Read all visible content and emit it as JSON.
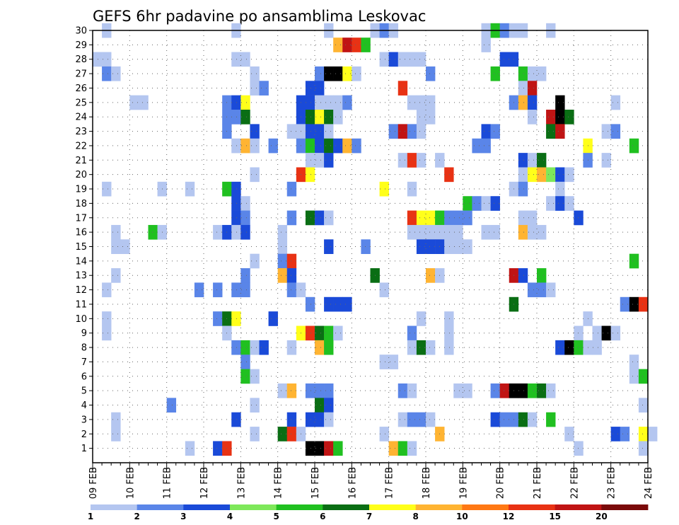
{
  "chart_data": {
    "type": "heatmap",
    "title": "GEFS 6hr padavine po ansamblima Leskovac",
    "x_tick_labels": [
      "09 FEB",
      "10 FEB",
      "11 FEB",
      "12 FEB",
      "13 FEB",
      "14 FEB",
      "15 FEB",
      "16 FEB",
      "17 FEB",
      "18 FEB",
      "19 FEB",
      "20 FEB",
      "21 FEB",
      "22 FEB",
      "23 FEB",
      "24 FEB"
    ],
    "y_tick_labels": [
      "1",
      "2",
      "3",
      "4",
      "5",
      "6",
      "7",
      "8",
      "9",
      "10",
      "11",
      "12",
      "13",
      "14",
      "15",
      "16",
      "17",
      "18",
      "19",
      "20",
      "21",
      "22",
      "23",
      "24",
      "25",
      "26",
      "27",
      "28",
      "29",
      "30"
    ],
    "ylim": [
      0,
      30
    ],
    "grid": true,
    "time_steps": 60,
    "colorbar": {
      "labels": [
        "1",
        "2",
        "3",
        "4",
        "5",
        "6",
        "7",
        "8",
        "10",
        "12",
        "15",
        "20"
      ],
      "colors": [
        "#b4c6f0",
        "#5a85e8",
        "#1a4ad8",
        "#7ee85a",
        "#20c020",
        "#0a6e14",
        "#ffff1a",
        "#ffb432",
        "#ff7814",
        "#e83214",
        "#c01414",
        "#7a0a0a"
      ]
    },
    "cells": [
      [
        2,
        30,
        1
      ],
      [
        16,
        30,
        1
      ],
      [
        26,
        30,
        1
      ],
      [
        31,
        30,
        1
      ],
      [
        32,
        30,
        2
      ],
      [
        33,
        30,
        1
      ],
      [
        43,
        30,
        1
      ],
      [
        44,
        30,
        5
      ],
      [
        45,
        30,
        2
      ],
      [
        46,
        30,
        1
      ],
      [
        47,
        30,
        1
      ],
      [
        50,
        30,
        1
      ],
      [
        27,
        29,
        8
      ],
      [
        28,
        29,
        11
      ],
      [
        29,
        29,
        10
      ],
      [
        30,
        29,
        5
      ],
      [
        43,
        29,
        1
      ],
      [
        1,
        28,
        1
      ],
      [
        2,
        28,
        1
      ],
      [
        16,
        28,
        1
      ],
      [
        17,
        28,
        1
      ],
      [
        32,
        28,
        1
      ],
      [
        33,
        28,
        3
      ],
      [
        34,
        28,
        1
      ],
      [
        35,
        28,
        1
      ],
      [
        36,
        28,
        1
      ],
      [
        45,
        28,
        3
      ],
      [
        46,
        28,
        3
      ],
      [
        2,
        27,
        2
      ],
      [
        3,
        27,
        1
      ],
      [
        18,
        27,
        1
      ],
      [
        25,
        27,
        2
      ],
      [
        26,
        27,
        14
      ],
      [
        27,
        27,
        14
      ],
      [
        28,
        27,
        7
      ],
      [
        29,
        27,
        1
      ],
      [
        37,
        27,
        2
      ],
      [
        44,
        27,
        5
      ],
      [
        47,
        27,
        5
      ],
      [
        48,
        27,
        1
      ],
      [
        49,
        27,
        1
      ],
      [
        18,
        26,
        1
      ],
      [
        19,
        26,
        2
      ],
      [
        24,
        26,
        3
      ],
      [
        25,
        26,
        3
      ],
      [
        34,
        26,
        10
      ],
      [
        47,
        26,
        1
      ],
      [
        48,
        26,
        11
      ],
      [
        5,
        25,
        1
      ],
      [
        6,
        25,
        1
      ],
      [
        15,
        25,
        2
      ],
      [
        16,
        25,
        3
      ],
      [
        17,
        25,
        7
      ],
      [
        23,
        25,
        3
      ],
      [
        24,
        25,
        3
      ],
      [
        25,
        25,
        1
      ],
      [
        26,
        25,
        1
      ],
      [
        27,
        25,
        1
      ],
      [
        28,
        25,
        2
      ],
      [
        35,
        25,
        1
      ],
      [
        36,
        25,
        1
      ],
      [
        37,
        25,
        1
      ],
      [
        46,
        25,
        2
      ],
      [
        47,
        25,
        8
      ],
      [
        48,
        25,
        3
      ],
      [
        51,
        25,
        14
      ],
      [
        57,
        25,
        1
      ],
      [
        15,
        24,
        2
      ],
      [
        16,
        24,
        2
      ],
      [
        17,
        24,
        6
      ],
      [
        23,
        24,
        3
      ],
      [
        24,
        24,
        6
      ],
      [
        25,
        24,
        7
      ],
      [
        26,
        24,
        6
      ],
      [
        27,
        24,
        1
      ],
      [
        36,
        24,
        1
      ],
      [
        37,
        24,
        1
      ],
      [
        48,
        24,
        1
      ],
      [
        50,
        24,
        11
      ],
      [
        51,
        24,
        15
      ],
      [
        52,
        24,
        6
      ],
      [
        15,
        23,
        2
      ],
      [
        18,
        23,
        3
      ],
      [
        22,
        23,
        1
      ],
      [
        23,
        23,
        1
      ],
      [
        24,
        23,
        3
      ],
      [
        25,
        23,
        3
      ],
      [
        26,
        23,
        1
      ],
      [
        33,
        23,
        2
      ],
      [
        34,
        23,
        11
      ],
      [
        35,
        23,
        2
      ],
      [
        36,
        23,
        1
      ],
      [
        43,
        23,
        3
      ],
      [
        44,
        23,
        2
      ],
      [
        50,
        23,
        6
      ],
      [
        51,
        23,
        11
      ],
      [
        56,
        23,
        1
      ],
      [
        57,
        23,
        2
      ],
      [
        16,
        22,
        1
      ],
      [
        17,
        22,
        8
      ],
      [
        18,
        22,
        1
      ],
      [
        20,
        22,
        2
      ],
      [
        23,
        22,
        2
      ],
      [
        24,
        22,
        5
      ],
      [
        25,
        22,
        3
      ],
      [
        26,
        22,
        6
      ],
      [
        27,
        22,
        3
      ],
      [
        28,
        22,
        8
      ],
      [
        29,
        22,
        2
      ],
      [
        42,
        22,
        2
      ],
      [
        43,
        22,
        2
      ],
      [
        54,
        22,
        7
      ],
      [
        59,
        22,
        5
      ],
      [
        24,
        21,
        1
      ],
      [
        25,
        21,
        1
      ],
      [
        26,
        21,
        3
      ],
      [
        34,
        21,
        1
      ],
      [
        35,
        21,
        10
      ],
      [
        36,
        21,
        1
      ],
      [
        38,
        21,
        1
      ],
      [
        47,
        21,
        3
      ],
      [
        48,
        21,
        1
      ],
      [
        49,
        21,
        6
      ],
      [
        54,
        21,
        2
      ],
      [
        56,
        21,
        1
      ],
      [
        18,
        20,
        1
      ],
      [
        23,
        20,
        10
      ],
      [
        24,
        20,
        7
      ],
      [
        39,
        20,
        10
      ],
      [
        47,
        20,
        1
      ],
      [
        48,
        20,
        7
      ],
      [
        49,
        20,
        8
      ],
      [
        50,
        20,
        4
      ],
      [
        51,
        20,
        3
      ],
      [
        52,
        20,
        1
      ],
      [
        2,
        19,
        1
      ],
      [
        8,
        19,
        1
      ],
      [
        11,
        19,
        1
      ],
      [
        15,
        19,
        5
      ],
      [
        16,
        19,
        3
      ],
      [
        22,
        19,
        2
      ],
      [
        32,
        19,
        7
      ],
      [
        35,
        19,
        1
      ],
      [
        46,
        19,
        1
      ],
      [
        47,
        19,
        2
      ],
      [
        51,
        19,
        1
      ],
      [
        16,
        18,
        3
      ],
      [
        17,
        18,
        1
      ],
      [
        41,
        18,
        5
      ],
      [
        42,
        18,
        2
      ],
      [
        43,
        18,
        1
      ],
      [
        44,
        18,
        3
      ],
      [
        50,
        18,
        1
      ],
      [
        51,
        18,
        3
      ],
      [
        52,
        18,
        1
      ],
      [
        16,
        17,
        3
      ],
      [
        17,
        17,
        2
      ],
      [
        22,
        17,
        2
      ],
      [
        24,
        17,
        6
      ],
      [
        25,
        17,
        3
      ],
      [
        26,
        17,
        1
      ],
      [
        35,
        17,
        10
      ],
      [
        36,
        17,
        7
      ],
      [
        37,
        17,
        7
      ],
      [
        38,
        17,
        5
      ],
      [
        39,
        17,
        2
      ],
      [
        40,
        17,
        2
      ],
      [
        41,
        17,
        2
      ],
      [
        47,
        17,
        1
      ],
      [
        48,
        17,
        1
      ],
      [
        53,
        17,
        3
      ],
      [
        3,
        16,
        1
      ],
      [
        7,
        16,
        5
      ],
      [
        8,
        16,
        1
      ],
      [
        14,
        16,
        1
      ],
      [
        15,
        16,
        3
      ],
      [
        16,
        16,
        1
      ],
      [
        17,
        16,
        3
      ],
      [
        21,
        16,
        1
      ],
      [
        35,
        16,
        1
      ],
      [
        36,
        16,
        1
      ],
      [
        37,
        16,
        1
      ],
      [
        38,
        16,
        1
      ],
      [
        39,
        16,
        1
      ],
      [
        40,
        16,
        1
      ],
      [
        43,
        16,
        1
      ],
      [
        44,
        16,
        1
      ],
      [
        47,
        16,
        8
      ],
      [
        48,
        16,
        1
      ],
      [
        49,
        16,
        1
      ],
      [
        3,
        15,
        1
      ],
      [
        4,
        15,
        1
      ],
      [
        21,
        15,
        1
      ],
      [
        26,
        15,
        3
      ],
      [
        30,
        15,
        2
      ],
      [
        36,
        15,
        3
      ],
      [
        37,
        15,
        3
      ],
      [
        38,
        15,
        3
      ],
      [
        39,
        15,
        1
      ],
      [
        40,
        15,
        1
      ],
      [
        41,
        15,
        1
      ],
      [
        18,
        14,
        1
      ],
      [
        21,
        14,
        2
      ],
      [
        22,
        14,
        10
      ],
      [
        59,
        14,
        5
      ],
      [
        3,
        13,
        1
      ],
      [
        17,
        13,
        2
      ],
      [
        21,
        13,
        8
      ],
      [
        22,
        13,
        3
      ],
      [
        31,
        13,
        6
      ],
      [
        37,
        13,
        8
      ],
      [
        38,
        13,
        1
      ],
      [
        46,
        13,
        11
      ],
      [
        47,
        13,
        3
      ],
      [
        49,
        13,
        5
      ],
      [
        2,
        12,
        1
      ],
      [
        12,
        12,
        2
      ],
      [
        14,
        12,
        2
      ],
      [
        16,
        12,
        2
      ],
      [
        17,
        12,
        2
      ],
      [
        22,
        12,
        2
      ],
      [
        23,
        12,
        1
      ],
      [
        32,
        12,
        1
      ],
      [
        48,
        12,
        2
      ],
      [
        49,
        12,
        2
      ],
      [
        50,
        12,
        1
      ],
      [
        24,
        11,
        2
      ],
      [
        26,
        11,
        3
      ],
      [
        27,
        11,
        3
      ],
      [
        28,
        11,
        3
      ],
      [
        46,
        11,
        6
      ],
      [
        58,
        11,
        2
      ],
      [
        59,
        11,
        14
      ],
      [
        60,
        11,
        10
      ],
      [
        2,
        10,
        1
      ],
      [
        14,
        10,
        2
      ],
      [
        15,
        10,
        6
      ],
      [
        16,
        10,
        7
      ],
      [
        20,
        10,
        3
      ],
      [
        36,
        10,
        1
      ],
      [
        39,
        10,
        1
      ],
      [
        54,
        10,
        1
      ],
      [
        2,
        9,
        1
      ],
      [
        15,
        9,
        1
      ],
      [
        23,
        9,
        7
      ],
      [
        24,
        9,
        10
      ],
      [
        25,
        9,
        6
      ],
      [
        26,
        9,
        5
      ],
      [
        27,
        9,
        1
      ],
      [
        35,
        9,
        2
      ],
      [
        39,
        9,
        1
      ],
      [
        53,
        9,
        1
      ],
      [
        55,
        9,
        1
      ],
      [
        56,
        9,
        14
      ],
      [
        57,
        9,
        1
      ],
      [
        16,
        8,
        2
      ],
      [
        17,
        8,
        5
      ],
      [
        18,
        8,
        1
      ],
      [
        19,
        8,
        3
      ],
      [
        22,
        8,
        1
      ],
      [
        25,
        8,
        8
      ],
      [
        26,
        8,
        5
      ],
      [
        35,
        8,
        1
      ],
      [
        36,
        8,
        6
      ],
      [
        37,
        8,
        1
      ],
      [
        39,
        8,
        1
      ],
      [
        51,
        8,
        3
      ],
      [
        52,
        8,
        14
      ],
      [
        53,
        8,
        5
      ],
      [
        54,
        8,
        1
      ],
      [
        55,
        8,
        1
      ],
      [
        17,
        7,
        2
      ],
      [
        32,
        7,
        1
      ],
      [
        33,
        7,
        1
      ],
      [
        59,
        7,
        1
      ],
      [
        17,
        6,
        5
      ],
      [
        18,
        6,
        1
      ],
      [
        59,
        6,
        1
      ],
      [
        60,
        6,
        5
      ],
      [
        21,
        5,
        1
      ],
      [
        22,
        5,
        8
      ],
      [
        24,
        5,
        2
      ],
      [
        25,
        5,
        2
      ],
      [
        26,
        5,
        2
      ],
      [
        34,
        5,
        2
      ],
      [
        35,
        5,
        1
      ],
      [
        40,
        5,
        1
      ],
      [
        41,
        5,
        1
      ],
      [
        44,
        5,
        2
      ],
      [
        45,
        5,
        11
      ],
      [
        46,
        5,
        14
      ],
      [
        47,
        5,
        14
      ],
      [
        48,
        5,
        5
      ],
      [
        49,
        5,
        6
      ],
      [
        50,
        5,
        1
      ],
      [
        9,
        4,
        2
      ],
      [
        18,
        4,
        1
      ],
      [
        25,
        4,
        6
      ],
      [
        26,
        4,
        3
      ],
      [
        60,
        4,
        1
      ],
      [
        3,
        3,
        1
      ],
      [
        16,
        3,
        3
      ],
      [
        22,
        3,
        3
      ],
      [
        24,
        3,
        3
      ],
      [
        25,
        3,
        3
      ],
      [
        26,
        3,
        1
      ],
      [
        34,
        3,
        1
      ],
      [
        35,
        3,
        2
      ],
      [
        36,
        3,
        2
      ],
      [
        37,
        3,
        1
      ],
      [
        44,
        3,
        3
      ],
      [
        45,
        3,
        2
      ],
      [
        46,
        3,
        2
      ],
      [
        47,
        3,
        6
      ],
      [
        48,
        3,
        1
      ],
      [
        50,
        3,
        5
      ],
      [
        3,
        2,
        1
      ],
      [
        18,
        2,
        1
      ],
      [
        21,
        2,
        6
      ],
      [
        22,
        2,
        10
      ],
      [
        23,
        2,
        1
      ],
      [
        32,
        2,
        1
      ],
      [
        38,
        2,
        8
      ],
      [
        52,
        2,
        1
      ],
      [
        57,
        2,
        3
      ],
      [
        58,
        2,
        2
      ],
      [
        60,
        2,
        7
      ],
      [
        61,
        2,
        1
      ],
      [
        11,
        1,
        1
      ],
      [
        14,
        1,
        3
      ],
      [
        15,
        1,
        10
      ],
      [
        24,
        1,
        14
      ],
      [
        25,
        1,
        14
      ],
      [
        26,
        1,
        11
      ],
      [
        27,
        1,
        5
      ],
      [
        33,
        1,
        8
      ],
      [
        34,
        1,
        5
      ],
      [
        35,
        1,
        1
      ],
      [
        53,
        1,
        1
      ],
      [
        60,
        1,
        1
      ]
    ]
  }
}
